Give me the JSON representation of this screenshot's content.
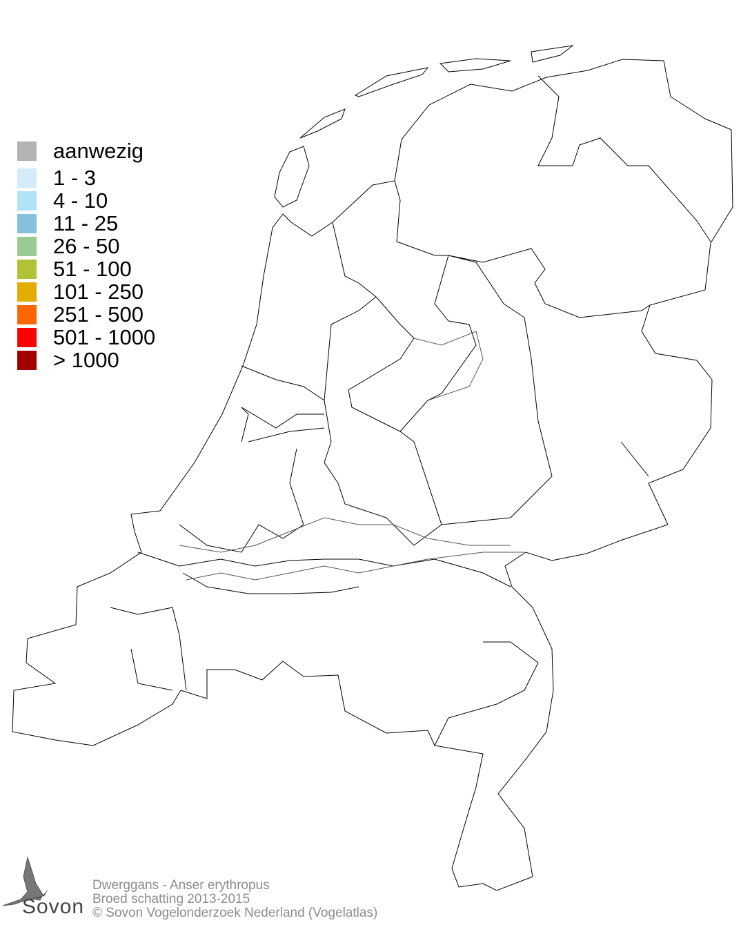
{
  "legend": {
    "items": [
      {
        "label": "aanwezig",
        "color": "#b3b3b3"
      },
      {
        "label": "1 - 3",
        "color": "#d4ecfa"
      },
      {
        "label": "4 - 10",
        "color": "#b0e2f8"
      },
      {
        "label": "11 - 25",
        "color": "#87c0de"
      },
      {
        "label": "26 - 50",
        "color": "#98cb94"
      },
      {
        "label": "51 - 100",
        "color": "#b2c236"
      },
      {
        "label": "101 - 250",
        "color": "#e2ad00"
      },
      {
        "label": "251 - 500",
        "color": "#ff6600"
      },
      {
        "label": "501 - 1000",
        "color": "#ff0000"
      },
      {
        "label": "> 1000",
        "color": "#a00000"
      }
    ]
  },
  "footer": {
    "species": "Dwerggans - Anser erythropus",
    "subtitle": "Broed schatting 2013-2015",
    "copyright": "© Sovon Vogelonderzoek Nederland (Vogelatlas)"
  },
  "logo": {
    "text": "Sovon",
    "icon": "swallow-icon"
  },
  "map": {
    "region": "Netherlands",
    "fill_color": "#ffffff",
    "border_color": "#000000"
  }
}
